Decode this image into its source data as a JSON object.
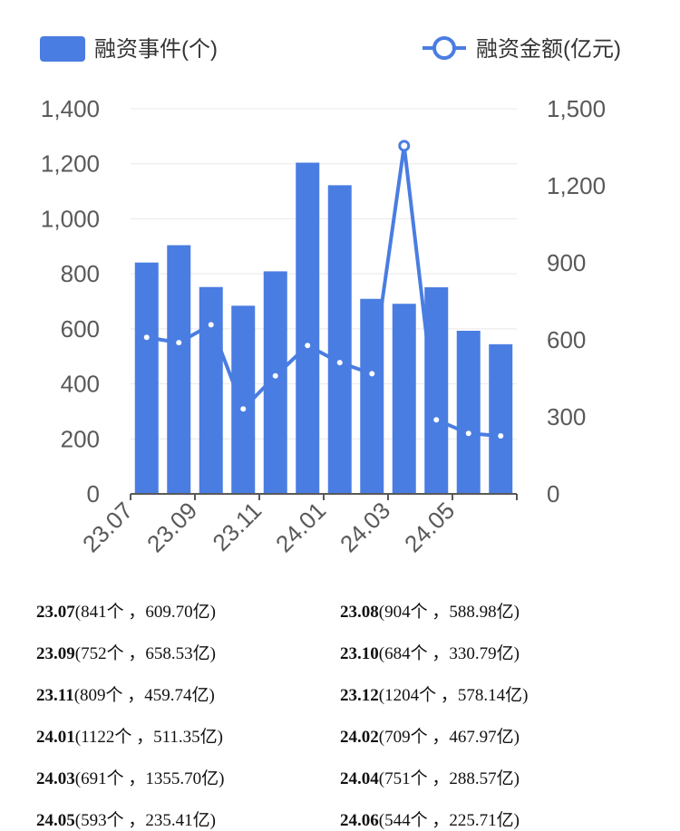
{
  "legend": {
    "bar_label": "融资事件(个)",
    "line_label": "融资金额(亿元)"
  },
  "colors": {
    "bar": "#4a7de2",
    "line": "#4a7de2",
    "grid": "#e8e8e8",
    "axis": "#595959"
  },
  "chart_data": {
    "type": "bar",
    "categories": [
      "23.07",
      "23.08",
      "23.09",
      "23.10",
      "23.11",
      "23.12",
      "24.01",
      "24.02",
      "24.03",
      "24.04",
      "24.05",
      "24.06"
    ],
    "x_tick_labels": [
      "23.07",
      "23.09",
      "23.11",
      "24.01",
      "24.03",
      "24.05"
    ],
    "series": [
      {
        "name": "融资事件(个)",
        "type": "bar",
        "axis": "left",
        "values": [
          841,
          904,
          752,
          684,
          809,
          1204,
          1122,
          709,
          691,
          751,
          593,
          544
        ]
      },
      {
        "name": "融资金额(亿元)",
        "type": "line",
        "axis": "right",
        "values": [
          609.7,
          588.98,
          658.53,
          330.79,
          459.74,
          578.14,
          511.35,
          467.97,
          1355.7,
          288.57,
          235.41,
          225.71
        ]
      }
    ],
    "y_left": {
      "ylim": [
        0,
        1400
      ],
      "ticks": [
        "0",
        "200",
        "400",
        "600",
        "800",
        "1,000",
        "1,200",
        "1,400"
      ]
    },
    "y_right": {
      "ylim": [
        0,
        1500
      ],
      "ticks": [
        "0",
        "300",
        "600",
        "900",
        "1,200",
        "1,500"
      ]
    },
    "legend_position": "top",
    "grid": true
  },
  "summary": [
    {
      "period": "23.07",
      "detail": "(841个 ，609.70亿)"
    },
    {
      "period": "23.08",
      "detail": "(904个 ，588.98亿)"
    },
    {
      "period": "23.09",
      "detail": "(752个 ，658.53亿)"
    },
    {
      "period": "23.10",
      "detail": "(684个 ，330.79亿)"
    },
    {
      "period": "23.11",
      "detail": "(809个 ，459.74亿)"
    },
    {
      "period": "23.12",
      "detail": "(1204个 ，578.14亿)"
    },
    {
      "period": "24.01",
      "detail": "(1122个 ，511.35亿)"
    },
    {
      "period": "24.02",
      "detail": "(709个 ，467.97亿)"
    },
    {
      "period": "24.03",
      "detail": "(691个 ，1355.70亿)"
    },
    {
      "period": "24.04",
      "detail": "(751个 ，288.57亿)"
    },
    {
      "period": "24.05",
      "detail": "(593个 ，235.41亿)"
    },
    {
      "period": "24.06",
      "detail": "(544个 ，225.71亿)"
    }
  ]
}
